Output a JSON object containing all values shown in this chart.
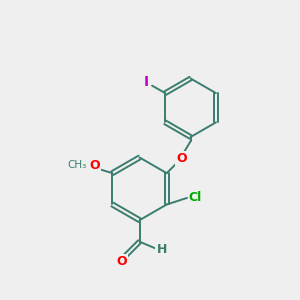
{
  "background_color": "#efefef",
  "bond_color": "#3a7d6e",
  "bond_width": 1.4,
  "atom_colors": {
    "O": "#ff0000",
    "Cl": "#00aa00",
    "I": "#cc00cc",
    "H": "#3a7d6e",
    "C": "#3a7d6e"
  },
  "font_size_atom": 8.5,
  "figsize": [
    3.0,
    3.0
  ],
  "dpi": 100
}
